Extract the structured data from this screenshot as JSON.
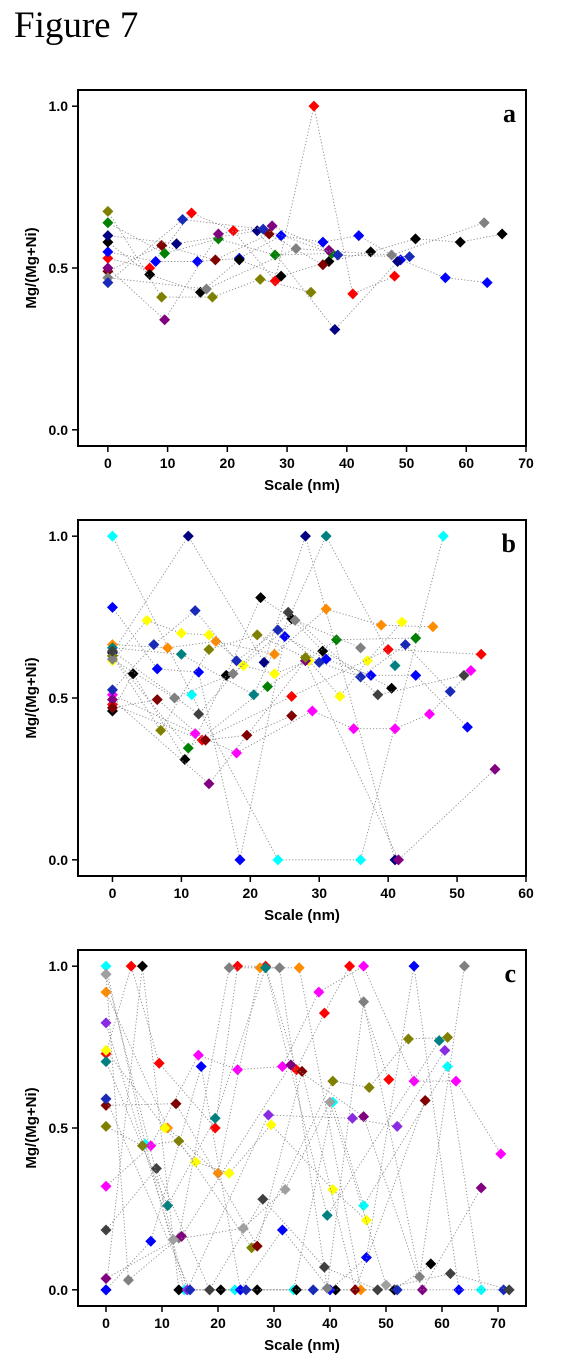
{
  "figure": {
    "title": "Figure 7"
  },
  "chart_data": [
    {
      "type": "scatter",
      "panel_label": "a",
      "xlabel": "Scale (nm)",
      "ylabel": "Mg/(Mg+Ni)",
      "xlim": [
        -5,
        70
      ],
      "ylim": [
        -0.05,
        1.05
      ],
      "xticks": [
        0,
        10,
        20,
        30,
        40,
        50,
        60,
        70
      ],
      "yticks": [
        0.0,
        0.5,
        1.0
      ],
      "ytick_labels": [
        "0.0",
        "0.5",
        "1.0"
      ],
      "grid": false,
      "series": [
        {
          "color": "#ff0000",
          "x": [
            0,
            7,
            14,
            21,
            28,
            34.5,
            41,
            48
          ],
          "y": [
            0.53,
            0.5,
            0.67,
            0.615,
            0.46,
            1.0,
            0.42,
            0.475
          ]
        },
        {
          "color": "#0000ff",
          "x": [
            0,
            8,
            15,
            22,
            29,
            36,
            42,
            49,
            56.5,
            63.5
          ],
          "y": [
            0.55,
            0.52,
            0.52,
            0.53,
            0.6,
            0.58,
            0.6,
            0.525,
            0.47,
            0.455
          ]
        },
        {
          "color": "#000000",
          "x": [
            0,
            7,
            15.5,
            22,
            29,
            37,
            44,
            51.5,
            59,
            66
          ],
          "y": [
            0.58,
            0.48,
            0.425,
            0.525,
            0.475,
            0.52,
            0.55,
            0.59,
            0.58,
            0.605
          ]
        },
        {
          "color": "#008000",
          "x": [
            0,
            9.5,
            18.5,
            28,
            37.5
          ],
          "y": [
            0.64,
            0.545,
            0.59,
            0.54,
            0.545
          ]
        },
        {
          "color": "#800000",
          "x": [
            0,
            9,
            18,
            27,
            36
          ],
          "y": [
            0.49,
            0.57,
            0.525,
            0.605,
            0.51
          ]
        },
        {
          "color": "#000080",
          "x": [
            0,
            11.5,
            25,
            38,
            48.5
          ],
          "y": [
            0.6,
            0.575,
            0.615,
            0.31,
            0.52
          ]
        },
        {
          "color": "#800080",
          "x": [
            0,
            9.5,
            18.5,
            27.5,
            37
          ],
          "y": [
            0.5,
            0.34,
            0.605,
            0.63,
            0.555
          ]
        },
        {
          "color": "#808000",
          "x": [
            0,
            9,
            17.5,
            25.5,
            34
          ],
          "y": [
            0.675,
            0.41,
            0.41,
            0.465,
            0.425
          ]
        },
        {
          "color": "#808080",
          "x": [
            0,
            16.5,
            31.5,
            47.5,
            63
          ],
          "y": [
            0.47,
            0.435,
            0.56,
            0.54,
            0.64
          ]
        },
        {
          "color": "#1a2ab8",
          "x": [
            0,
            12.5,
            26,
            38.5,
            50.5
          ],
          "y": [
            0.455,
            0.65,
            0.62,
            0.54,
            0.535
          ]
        }
      ]
    },
    {
      "type": "scatter",
      "panel_label": "b",
      "xlabel": "Scale (nm)",
      "ylabel": "Mg/(Mg+Ni)",
      "xlim": [
        -5,
        60
      ],
      "ylim": [
        -0.05,
        1.05
      ],
      "xticks": [
        0,
        10,
        20,
        30,
        40,
        50,
        60
      ],
      "yticks": [
        0.0,
        0.5,
        1.0
      ],
      "ytick_labels": [
        "0.0",
        "0.5",
        "1.0"
      ],
      "grid": false,
      "series": [
        {
          "color": "#00ffff",
          "x": [
            0,
            11.5,
            24,
            36,
            48
          ],
          "y": [
            1.0,
            0.51,
            0.0,
            0.0,
            1.0
          ]
        },
        {
          "color": "#000080",
          "x": [
            0,
            11,
            22,
            28,
            41
          ],
          "y": [
            0.64,
            1.0,
            0.61,
            1.0,
            0.0
          ]
        },
        {
          "color": "#0000ff",
          "x": [
            0,
            6.5,
            12.5,
            18.5,
            25,
            31,
            37.5,
            44,
            51.5
          ],
          "y": [
            0.78,
            0.59,
            0.58,
            0.0,
            0.69,
            0.62,
            0.57,
            0.57,
            0.41
          ]
        },
        {
          "color": "#ff8c00",
          "x": [
            0,
            8,
            15,
            23.5,
            31,
            39,
            46.5
          ],
          "y": [
            0.665,
            0.655,
            0.675,
            0.635,
            0.775,
            0.725,
            0.72
          ]
        },
        {
          "color": "#ffff00",
          "x": [
            0,
            5,
            10,
            14,
            19,
            23.5,
            28.5,
            33,
            37,
            42
          ],
          "y": [
            0.615,
            0.74,
            0.7,
            0.695,
            0.6,
            0.575,
            0.615,
            0.505,
            0.615,
            0.735
          ]
        },
        {
          "color": "#000000",
          "x": [
            0,
            3,
            10.5,
            16.5,
            21.5,
            26,
            30.5,
            40.5
          ],
          "y": [
            0.46,
            0.575,
            0.31,
            0.57,
            0.81,
            0.745,
            0.645,
            0.53
          ]
        },
        {
          "color": "#ff00ff",
          "x": [
            0,
            12,
            18,
            29,
            35,
            41,
            46,
            52
          ],
          "y": [
            0.51,
            0.39,
            0.33,
            0.46,
            0.405,
            0.405,
            0.45,
            0.585
          ]
        },
        {
          "color": "#ff0000",
          "x": [
            0,
            13,
            26,
            40,
            53.5
          ],
          "y": [
            0.48,
            0.37,
            0.505,
            0.65,
            0.635
          ]
        },
        {
          "color": "#1a2ab8",
          "x": [
            0,
            6,
            12,
            18,
            24,
            30,
            36,
            42.5,
            49
          ],
          "y": [
            0.525,
            0.665,
            0.77,
            0.615,
            0.71,
            0.61,
            0.565,
            0.665,
            0.52
          ]
        },
        {
          "color": "#008000",
          "x": [
            0,
            11,
            22.5,
            32.5,
            44
          ],
          "y": [
            0.63,
            0.345,
            0.535,
            0.68,
            0.685
          ]
        },
        {
          "color": "#008080",
          "x": [
            0,
            10,
            20.5,
            31,
            41
          ],
          "y": [
            0.655,
            0.635,
            0.51,
            1.0,
            0.6
          ]
        },
        {
          "color": "#800080",
          "x": [
            0,
            14,
            28,
            41.5,
            55.5
          ],
          "y": [
            0.495,
            0.235,
            0.615,
            0.0,
            0.28
          ]
        },
        {
          "color": "#800000",
          "x": [
            0,
            6.5,
            13.5,
            19.5,
            26
          ],
          "y": [
            0.47,
            0.495,
            0.37,
            0.385,
            0.445
          ]
        },
        {
          "color": "#808000",
          "x": [
            0,
            7,
            14,
            21,
            28
          ],
          "y": [
            0.63,
            0.4,
            0.65,
            0.695,
            0.625
          ]
        },
        {
          "color": "#808080",
          "x": [
            0,
            9,
            17.5,
            26.5,
            36
          ],
          "y": [
            0.62,
            0.5,
            0.575,
            0.74,
            0.655
          ]
        },
        {
          "color": "#404040",
          "x": [
            0,
            12.5,
            25.5,
            38.5,
            51
          ],
          "y": [
            0.645,
            0.45,
            0.765,
            0.51,
            0.57
          ]
        }
      ]
    },
    {
      "type": "scatter",
      "panel_label": "c",
      "xlabel": "Scale (nm)",
      "ylabel": "Mg/(Mg+Ni)",
      "xlim": [
        -5,
        75
      ],
      "ylim": [
        -0.05,
        1.05
      ],
      "xticks": [
        0,
        10,
        20,
        30,
        40,
        50,
        60,
        70
      ],
      "yticks": [
        0.0,
        0.5,
        1.0
      ],
      "ytick_labels": [
        "0.0",
        "0.5",
        "1.0"
      ],
      "grid": false,
      "series": [
        {
          "color": "#00ffff",
          "x": [
            0,
            7,
            14,
            23,
            33.5,
            40.5,
            46,
            61,
            67
          ],
          "y": [
            1.0,
            0.45,
            0.0,
            0.0,
            0.0,
            0.58,
            0.26,
            0.69,
            0.0
          ]
        },
        {
          "color": "#000000",
          "x": [
            0,
            6.5,
            13,
            20.5,
            27,
            34,
            41,
            51.5,
            58
          ],
          "y": [
            0.0,
            1.0,
            0.0,
            0.0,
            0.0,
            0.0,
            0.0,
            0.0,
            0.08
          ]
        },
        {
          "color": "#ff0000",
          "x": [
            0,
            4.5,
            9.5,
            19.5,
            23.5,
            28.5,
            34,
            39,
            43.5,
            50.5
          ],
          "y": [
            0.73,
            1.0,
            0.7,
            0.5,
            1.0,
            1.0,
            0.68,
            0.855,
            1.0,
            0.65
          ]
        },
        {
          "color": "#ff00ff",
          "x": [
            0,
            8,
            16.5,
            23.5,
            31.5,
            38,
            46,
            55,
            62.5,
            70.5
          ],
          "y": [
            0.32,
            0.445,
            0.725,
            0.68,
            0.69,
            0.92,
            1.0,
            0.645,
            0.645,
            0.42
          ]
        },
        {
          "color": "#0000ff",
          "x": [
            0,
            8,
            17,
            24,
            31.5,
            40,
            46.5,
            55,
            63
          ],
          "y": [
            0.0,
            0.15,
            0.69,
            0.0,
            0.185,
            0.0,
            0.1,
            1.0,
            0.0
          ]
        },
        {
          "color": "#ff8c00",
          "x": [
            0,
            11,
            20,
            27.5,
            34.5,
            45.5
          ],
          "y": [
            0.92,
            0.5,
            0.36,
            0.995,
            0.995,
            0.0
          ]
        },
        {
          "color": "#808080",
          "x": [
            0,
            4,
            13,
            22,
            31,
            39.5,
            46,
            56,
            64
          ],
          "y": [
            0.975,
            0.03,
            0.16,
            0.995,
            0.995,
            0.005,
            0.89,
            0.04,
            1.0
          ]
        },
        {
          "color": "#ffff00",
          "x": [
            0,
            10.5,
            16,
            22,
            29.5,
            40.5,
            46.5
          ],
          "y": [
            0.74,
            0.5,
            0.395,
            0.36,
            0.51,
            0.31,
            0.215
          ]
        },
        {
          "color": "#808000",
          "x": [
            0,
            6.5,
            13,
            26,
            40.5,
            47,
            54,
            61
          ],
          "y": [
            0.505,
            0.445,
            0.46,
            0.13,
            0.645,
            0.625,
            0.775,
            0.78
          ]
        },
        {
          "color": "#008080",
          "x": [
            0,
            11,
            19.5,
            28.5,
            39.5,
            59.5
          ],
          "y": [
            0.705,
            0.26,
            0.53,
            0.995,
            0.23,
            0.77
          ]
        },
        {
          "color": "#800000",
          "x": [
            0,
            12.5,
            27,
            35,
            44.5,
            57
          ],
          "y": [
            0.57,
            0.575,
            0.135,
            0.675,
            0.0,
            0.585
          ]
        },
        {
          "color": "#800080",
          "x": [
            0,
            13.5,
            33,
            46,
            56.5,
            67
          ],
          "y": [
            0.035,
            0.165,
            0.695,
            0.535,
            0.0,
            0.315
          ]
        },
        {
          "color": "#8a2be2",
          "x": [
            0,
            14.5,
            29,
            44,
            52,
            60.5
          ],
          "y": [
            0.825,
            0.0,
            0.54,
            0.53,
            0.505,
            0.74
          ]
        },
        {
          "color": "#1a2ab8",
          "x": [
            0,
            15,
            25,
            37,
            52,
            71
          ],
          "y": [
            0.59,
            0.0,
            0.0,
            0.0,
            0.0,
            0.0
          ]
        },
        {
          "color": "#404040",
          "x": [
            0,
            9,
            18.5,
            28,
            39,
            48.5,
            61.5,
            72
          ],
          "y": [
            0.185,
            0.375,
            0.0,
            0.28,
            0.07,
            0.0,
            0.05,
            0.0
          ]
        },
        {
          "color": "#a0a0a0",
          "x": [
            0,
            12,
            24.5,
            32,
            40,
            50
          ],
          "y": [
            0.975,
            0.155,
            0.19,
            0.31,
            0.58,
            0.015
          ]
        }
      ]
    }
  ]
}
